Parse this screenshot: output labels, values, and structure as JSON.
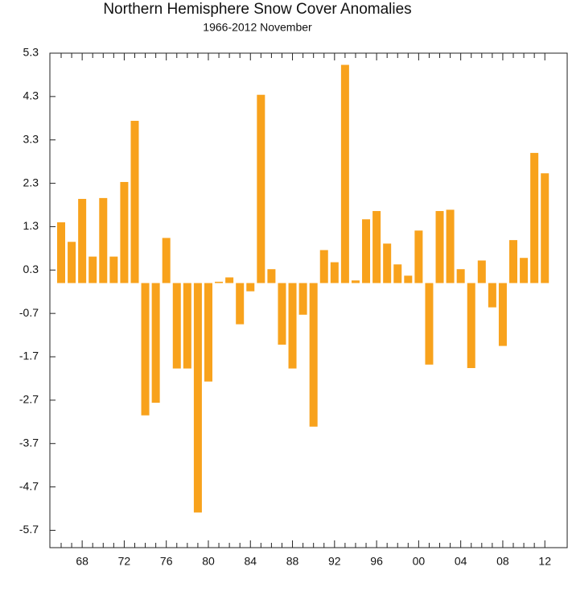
{
  "chart_data": {
    "type": "bar",
    "title": "Northern Hemisphere Snow Cover Anomalies",
    "subtitle": "1966-2012 November",
    "categories": [
      null,
      null,
      "68",
      null,
      null,
      null,
      "72",
      null,
      null,
      null,
      "76",
      null,
      null,
      null,
      "80",
      null,
      null,
      null,
      "84",
      null,
      null,
      null,
      "88",
      null,
      null,
      null,
      "92",
      null,
      null,
      null,
      "96",
      null,
      null,
      null,
      "00",
      null,
      null,
      null,
      "04",
      null,
      null,
      null,
      "08",
      null,
      null,
      null,
      "12"
    ],
    "values": [
      1.4,
      0.95,
      1.94,
      0.61,
      1.96,
      0.61,
      2.33,
      3.74,
      -3.05,
      -2.76,
      1.04,
      -1.97,
      -1.97,
      -5.29,
      -2.27,
      0.03,
      0.13,
      -0.95,
      -0.19,
      4.34,
      0.32,
      -1.42,
      -1.97,
      -0.73,
      -3.31,
      0.76,
      0.48,
      5.03,
      0.06,
      1.47,
      1.66,
      0.91,
      0.43,
      0.17,
      1.21,
      -1.88,
      1.66,
      1.69,
      0.32,
      -1.96,
      0.52,
      -0.56,
      -1.45,
      0.99,
      0.58,
      3.0,
      2.53
    ],
    "color": "#f8a21c",
    "ylim": [
      -6.1,
      5.3
    ],
    "yticks": [
      5.3,
      4.3,
      3.3,
      2.3,
      1.3,
      0.3,
      -0.7,
      -1.7,
      -2.7,
      -3.7,
      -4.7,
      -5.7
    ],
    "grid": false
  }
}
